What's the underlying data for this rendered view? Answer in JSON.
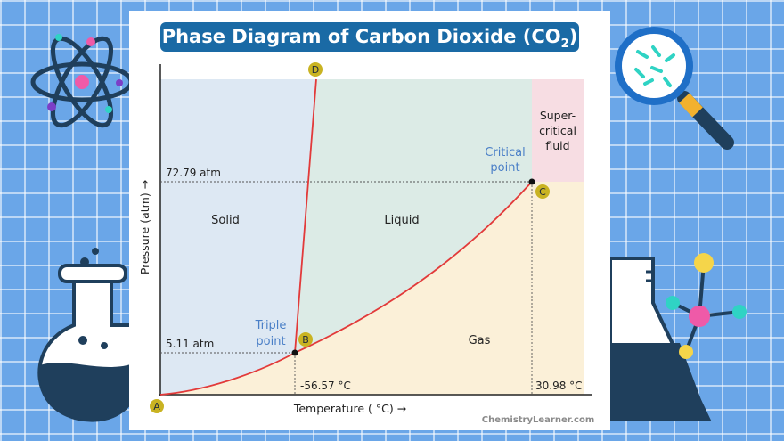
{
  "title": {
    "main": "Phase Diagram of Carbon Dioxide (CO",
    "sub": "2",
    "close": ")"
  },
  "axes": {
    "ylabel": "Pressure (atm) →",
    "xlabel": "Temperature ( °C) →"
  },
  "points": {
    "A": "A",
    "B": "B",
    "C": "C",
    "D": "D"
  },
  "regions": {
    "solid": "Solid",
    "liquid": "Liquid",
    "gas": "Gas",
    "supercritical_1": "Super-",
    "supercritical_2": "critical",
    "supercritical_3": "fluid"
  },
  "annotations": {
    "critical_1": "Critical",
    "critical_2": "point",
    "triple_1": "Triple",
    "triple_2": "point"
  },
  "ticks": {
    "p_critical": "72.79 atm",
    "p_triple": "5.11 atm",
    "t_triple": "-56.57 °C",
    "t_critical": "30.98 °C"
  },
  "watermark": "ChemistryLearner.com",
  "colors": {
    "solid": "#dde8f3",
    "liquid": "#dcebe6",
    "gas": "#fbf0d8",
    "supercritical": "#f7dde3",
    "curve": "#e23a3a",
    "title_bg": "#1a6aa5",
    "annotation": "#4a7fc7",
    "point_marker": "#c9b322"
  }
}
